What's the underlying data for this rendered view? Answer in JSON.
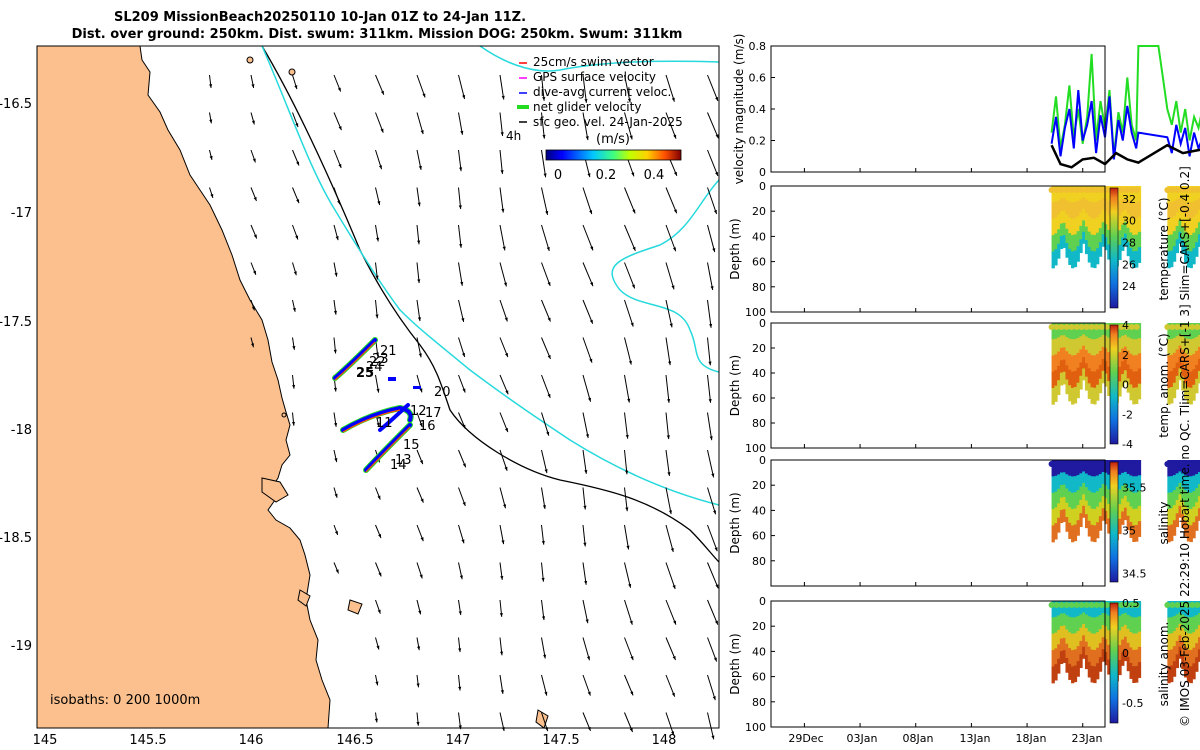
{
  "title": {
    "line1": "SL209 MissionBeach20250110 10-Jan 01Z to 24-Jan 11Z.",
    "line2": "Dist. over ground: 250km. Dist. swum: 311km. Mission DOG: 250km. Swum: 311km"
  },
  "colors": {
    "land": "#fbc08e",
    "isobath200": "#000000",
    "isobath1000": "#26d9dc",
    "glider_track": "#0000ff",
    "net_velocity": "#22dd22",
    "sfc_vector": "#000000",
    "swim_vector": "#ff0000",
    "gps_velocity": "#ff00ff"
  },
  "map": {
    "legend": {
      "swim": "25cm/s swim vector",
      "gps": "GPS surface velocity",
      "dive": "dive-avg current veloc.",
      "net": "net glider velocity",
      "sfc": "sfc geo. vel. 24-Jan-2025"
    },
    "scale_4h": "4h",
    "colorbar": {
      "label": "(m/s)",
      "ticks": [
        "0",
        "0.2",
        "0.4"
      ]
    },
    "isobaths_note": "isobaths: 0   200  1000m",
    "xticks": [
      "145",
      "145.5",
      "146",
      "146.5",
      "147",
      "147.5",
      "148"
    ],
    "yticks": [
      "-16.5",
      "-17",
      "-17.5",
      "-18",
      "-18.5",
      "-19"
    ],
    "day_labels": [
      "21",
      "22",
      "24",
      "23",
      "25",
      "20",
      "12",
      "17",
      "11",
      "16",
      "15",
      "13",
      "14"
    ]
  },
  "side_note": "© IMOS 03-Feb-2025 22:29:10 Hobart time. no QC. Tlim=CARS+[-1 3] Slim=CARS+[-0.4 0.2]",
  "chart_data": [
    {
      "type": "line",
      "title": "velocity magnitude",
      "ylabel": "velocity magnitude (m/s)",
      "ylim": [
        0,
        0.8
      ],
      "yticks": [
        "0",
        "0.2",
        "0.4",
        "0.6",
        "0.8"
      ],
      "xtick_labels": [
        "29Dec",
        "03Jan",
        "08Jan",
        "13Jan",
        "18Jan",
        "23Jan"
      ],
      "xlim_days": [
        -15,
        15
      ],
      "series": [
        {
          "name": "net glider velocity",
          "color": "#22dd22",
          "x": [
            10.2,
            10.6,
            11.0,
            11.4,
            11.8,
            12.2,
            12.6,
            13.0,
            13.4,
            13.8,
            14.2,
            14.6,
            15.0,
            15.4,
            15.8,
            16.2,
            16.6,
            17.0,
            17.4,
            17.8,
            18.0,
            18.6,
            19.2,
            19.8,
            20.2,
            20.6,
            21.0,
            21.4,
            21.8,
            22.2,
            22.6,
            23.0,
            23.4,
            23.8,
            24.2
          ],
          "y": [
            0.25,
            0.48,
            0.15,
            0.3,
            0.55,
            0.22,
            0.4,
            0.18,
            0.35,
            0.75,
            0.2,
            0.45,
            0.28,
            0.52,
            0.1,
            0.38,
            0.25,
            0.6,
            0.3,
            0.2,
            0.8,
            0.8,
            0.8,
            0.8,
            0.6,
            0.4,
            0.3,
            0.45,
            0.25,
            0.4,
            0.2,
            0.35,
            0.28,
            0.42,
            0.3
          ]
        },
        {
          "name": "dive-avg current veloc.",
          "color": "#0000ff",
          "x": [
            10.2,
            10.6,
            11.0,
            11.4,
            11.8,
            12.2,
            12.6,
            13.0,
            13.4,
            13.8,
            14.2,
            14.6,
            15.0,
            15.4,
            15.8,
            16.2,
            16.6,
            17.0,
            17.4,
            17.8,
            18.0,
            20.6,
            21.0,
            21.4,
            21.8,
            22.2,
            22.6,
            23.0,
            23.4,
            23.8,
            24.2
          ],
          "y": [
            0.18,
            0.35,
            0.1,
            0.28,
            0.4,
            0.15,
            0.52,
            0.2,
            0.3,
            0.45,
            0.12,
            0.36,
            0.22,
            0.48,
            0.08,
            0.33,
            0.2,
            0.42,
            0.25,
            0.15,
            0.25,
            0.22,
            0.12,
            0.3,
            0.18,
            0.28,
            0.1,
            0.25,
            0.15,
            0.22,
            0.12
          ]
        },
        {
          "name": "sfc geo. vel.",
          "color": "#000000",
          "x": [
            10.2,
            11.0,
            12.0,
            13.0,
            14.0,
            15.0,
            16.0,
            17.0,
            18.0,
            20.6,
            22.0,
            24.2
          ],
          "y": [
            0.17,
            0.05,
            0.03,
            0.08,
            0.09,
            0.05,
            0.12,
            0.08,
            0.06,
            0.17,
            0.12,
            0.15
          ]
        }
      ]
    },
    {
      "type": "heatmap",
      "variable": "temperature",
      "ylabel": "Depth (m)",
      "colorbar_label": "temperature (°C)",
      "ylim": [
        100,
        0
      ],
      "yticks": [
        "0",
        "20",
        "40",
        "60",
        "80",
        "100"
      ],
      "clim": [
        22,
        33
      ],
      "colorbar_ticks": [
        "24",
        "26",
        "28",
        "30",
        "32"
      ],
      "description_values": {
        "surface": 31,
        "deep": 25
      }
    },
    {
      "type": "heatmap",
      "variable": "temp. anom.",
      "ylabel": "Depth (m)",
      "colorbar_label": "temp. anom. (°C)",
      "ylim": [
        100,
        0
      ],
      "yticks": [
        "0",
        "20",
        "40",
        "60",
        "80",
        "100"
      ],
      "clim": [
        -4,
        4
      ],
      "colorbar_ticks": [
        "4",
        "2",
        "0",
        "-2",
        "-4"
      ]
    },
    {
      "type": "heatmap",
      "variable": "salinity",
      "ylabel": "Depth (m)",
      "colorbar_label": "salinity",
      "ylim": [
        100,
        0
      ],
      "yticks": [
        "0",
        "20",
        "40",
        "60",
        "80"
      ],
      "clim": [
        34.4,
        35.8
      ],
      "colorbar_ticks": [
        "35.5",
        "35",
        "34.5"
      ]
    },
    {
      "type": "heatmap",
      "variable": "salinity anom.",
      "ylabel": "Depth (m)",
      "colorbar_label": "salinity anom.",
      "ylim": [
        100,
        0
      ],
      "yticks": [
        "0",
        "20",
        "40",
        "60",
        "80",
        "100"
      ],
      "clim": [
        -0.7,
        0.5
      ],
      "colorbar_ticks": [
        "0.5",
        "0",
        "-0.5"
      ]
    }
  ]
}
